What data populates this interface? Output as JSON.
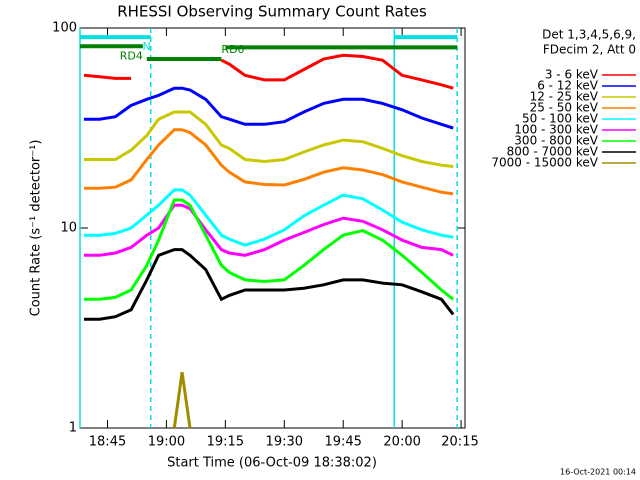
{
  "chart_data": {
    "type": "line",
    "title": "RHESSI Observing Summary Count Rates",
    "xlabel": "Start Time (06-Oct-09 18:38:02)",
    "ylabel": "Count Rate (s⁻¹ detector⁻¹)",
    "legend_header": [
      "Det 1,3,4,5,6,9,",
      "FDecim 2, Att 0"
    ],
    "footer": "16-Oct-2021 00:14",
    "log_y": true,
    "xlim": [
      "18:38",
      "20:16"
    ],
    "xticks": [
      "18:45",
      "19:00",
      "19:15",
      "19:30",
      "19:45",
      "20:00",
      "20:15"
    ],
    "ylim": [
      1,
      100
    ],
    "yticks": [
      1,
      10,
      100
    ],
    "x": [
      "18:39",
      "18:43",
      "18:47",
      "18:51",
      "18:55",
      "18:58",
      "19:02",
      "19:04",
      "19:06",
      "19:10",
      "19:14",
      "19:16",
      "19:20",
      "19:25",
      "19:30",
      "19:35",
      "19:40",
      "19:45",
      "19:50",
      "19:55",
      "20:00",
      "20:05",
      "20:10",
      "20:13"
    ],
    "series": [
      {
        "name": "3 - 6 keV",
        "color": "#ff0000",
        "values": [
          58,
          57,
          56,
          56,
          null,
          null,
          null,
          null,
          null,
          null,
          69,
          66,
          58,
          55,
          55,
          62,
          70,
          73,
          72,
          69,
          58,
          55,
          52,
          50
        ]
      },
      {
        "name": "6 - 12 keV",
        "color": "#0000ff",
        "values": [
          35,
          35,
          36,
          41,
          44,
          46,
          50,
          50,
          49,
          44,
          36,
          35,
          33,
          33,
          34,
          38,
          42,
          44,
          44,
          42,
          39,
          35.5,
          33,
          31.6
        ]
      },
      {
        "name": "12 - 25 keV",
        "color": "#c8c800",
        "values": [
          22,
          22,
          22,
          24.5,
          29,
          35,
          38,
          38,
          38,
          33,
          26,
          25,
          22,
          21.5,
          22,
          24,
          26,
          27.5,
          27,
          25,
          23,
          21.5,
          20.6,
          20.3
        ]
      },
      {
        "name": "25 - 50 keV",
        "color": "#ff8000",
        "values": [
          15.8,
          15.8,
          16,
          17.4,
          22,
          26,
          31,
          31,
          30,
          26,
          20.6,
          19,
          17,
          16.5,
          16.4,
          17.5,
          19,
          20,
          19.5,
          18.5,
          17,
          16,
          15.1,
          14.8
        ]
      },
      {
        "name": "50 - 100 keV",
        "color": "#00ffff",
        "values": [
          9.2,
          9.2,
          9.4,
          10,
          11.6,
          13,
          15.5,
          15.5,
          14.6,
          11.6,
          9.2,
          8.8,
          8.2,
          8.8,
          9.8,
          11.5,
          13,
          14.6,
          14,
          12.3,
          10.7,
          9.8,
          9.2,
          9
        ]
      },
      {
        "name": "100 - 300 keV",
        "color": "#ff00ff",
        "values": [
          7.3,
          7.3,
          7.5,
          8,
          9.2,
          10,
          13,
          13,
          12.5,
          9.8,
          7.8,
          7.5,
          7.3,
          7.8,
          8.7,
          9.5,
          10.4,
          11.2,
          10.8,
          9.8,
          8.7,
          8,
          7.8,
          7.3
        ]
      },
      {
        "name": "300 - 800 keV",
        "color": "#00ff00",
        "values": [
          4.4,
          4.4,
          4.5,
          4.9,
          6.5,
          8.7,
          13.8,
          13.8,
          13,
          9.2,
          6.5,
          6,
          5.5,
          5.4,
          5.5,
          6.5,
          7.8,
          9.2,
          9.7,
          8.7,
          7.3,
          6,
          4.9,
          4.4
        ]
      },
      {
        "name": "800 - 7000 keV",
        "color": "#000000",
        "values": [
          3.5,
          3.5,
          3.6,
          3.9,
          5.5,
          7.3,
          7.8,
          7.8,
          7.3,
          6.2,
          4.4,
          4.6,
          4.9,
          4.9,
          4.9,
          5,
          5.2,
          5.5,
          5.5,
          5.3,
          5.2,
          4.8,
          4.4,
          3.7
        ]
      },
      {
        "name": "7000 - 15000 keV",
        "color": "#a08c00",
        "values": [
          null,
          null,
          null,
          null,
          null,
          null,
          1,
          1.9,
          1,
          null,
          null,
          null,
          null,
          null,
          null,
          null,
          null,
          null,
          null,
          null,
          null,
          null,
          null,
          null
        ]
      }
    ],
    "flags": [
      {
        "label": "N",
        "color": "#00e0e0",
        "start": "18:38",
        "end": "18:56",
        "level": 90
      },
      {
        "color": "#00e0e0",
        "start": "19:58",
        "end": "20:14",
        "level": 90
      },
      {
        "label": "RD4",
        "color": "#008000",
        "start": "18:38",
        "end": "18:54",
        "level": 81
      },
      {
        "label": "RD0",
        "color": "#008000",
        "start": "18:55",
        "end": "19:14",
        "level": 70
      },
      {
        "color": "#008000",
        "start": "19:15",
        "end": "20:14",
        "level": 80
      }
    ],
    "events": [
      {
        "x": "18:38",
        "dashed": false,
        "color": "#00e0e0"
      },
      {
        "x": "18:56",
        "dashed": true,
        "color": "#00e0e0"
      },
      {
        "x": "19:58",
        "dashed": false,
        "color": "#00e0e0"
      },
      {
        "x": "20:14",
        "dashed": true,
        "color": "#00e0e0"
      }
    ]
  }
}
